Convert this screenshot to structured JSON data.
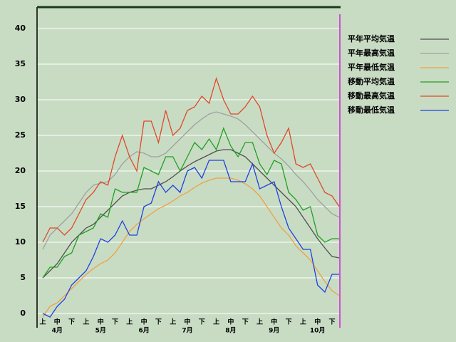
{
  "chart_data": {
    "type": "line",
    "categories": [
      "上",
      null,
      "中",
      null,
      "下",
      null,
      "上",
      null,
      "中",
      null,
      "下",
      null,
      "上",
      null,
      "中",
      null,
      "下",
      null,
      "上",
      null,
      "中",
      null,
      "下",
      null,
      "上",
      null,
      "中",
      null,
      "下",
      null,
      "上",
      null,
      "中",
      null,
      "下",
      null,
      "上",
      null,
      "中",
      null,
      "下",
      null
    ],
    "month_labels": [
      "4月",
      "5月",
      "6月",
      "7月",
      "8月",
      "9月",
      "10月"
    ],
    "ylim": [
      -2,
      43
    ],
    "yticks": [
      0,
      5,
      10,
      15,
      20,
      25,
      30,
      35,
      40
    ],
    "grid": true,
    "series": [
      {
        "name": "平年平均気温",
        "color": "#505050",
        "values": [
          5,
          6,
          7,
          8.5,
          10,
          11,
          12,
          12.5,
          13.5,
          14.5,
          15.5,
          16.5,
          17,
          17.3,
          17.5,
          17.5,
          18,
          18.5,
          19.2,
          20,
          20.7,
          21.3,
          21.8,
          22.3,
          22.8,
          23,
          23,
          22.5,
          22,
          21,
          20,
          19,
          18,
          17,
          16,
          15,
          13.5,
          12,
          10.5,
          9.2,
          8,
          7.8
        ]
      },
      {
        "name": "平年最高気温",
        "color": "#a0a0a0",
        "values": [
          9,
          11,
          12,
          13,
          14,
          15.5,
          17,
          18,
          18.3,
          18.5,
          19.5,
          21,
          22,
          22.7,
          22.5,
          22,
          22,
          22.5,
          23.5,
          24.5,
          25.5,
          26.5,
          27.3,
          28,
          28.3,
          28,
          27.7,
          27.3,
          26.5,
          25.5,
          24.5,
          23.5,
          22.5,
          21.7,
          20.7,
          19.5,
          18.5,
          17.3,
          16,
          15,
          14,
          13.5
        ]
      },
      {
        "name": "平年最低気温",
        "color": "#f0a040",
        "values": [
          -0.5,
          1,
          1.5,
          2.5,
          3.5,
          4.5,
          5.5,
          6.3,
          7,
          7.5,
          8.5,
          10,
          11.5,
          12.5,
          13.3,
          14,
          14.7,
          15.2,
          15.8,
          16.5,
          17,
          17.7,
          18.3,
          18.7,
          19,
          19,
          19,
          18.7,
          18.2,
          17.5,
          16.5,
          15,
          13.5,
          12,
          11,
          9.5,
          8.5,
          7.5,
          6,
          4.5,
          3.2,
          2.5
        ]
      },
      {
        "name": "移動平均気温",
        "color": "#20a020",
        "values": [
          5,
          6.5,
          6.5,
          8,
          8.5,
          11,
          11.5,
          12,
          14,
          13.5,
          17.5,
          17,
          17,
          17,
          20.5,
          20,
          19.5,
          22,
          22,
          20,
          22,
          24,
          23,
          24.5,
          23,
          26,
          23.5,
          22,
          24,
          24,
          21,
          19.5,
          21.5,
          21,
          17,
          16,
          14.5,
          15,
          11,
          10,
          10.5,
          10.5
        ]
      },
      {
        "name": "移動最高気温",
        "color": "#e04828",
        "values": [
          10,
          12,
          12,
          11,
          12,
          14,
          16,
          17,
          18.5,
          18,
          22,
          25,
          22,
          20,
          27,
          27,
          24,
          28.5,
          25,
          26,
          28.5,
          29,
          30.5,
          29.5,
          33,
          30,
          28,
          28,
          29,
          30.5,
          29,
          25,
          22.5,
          24,
          26,
          21,
          20.5,
          21,
          19,
          17,
          16.5,
          15
        ]
      },
      {
        "name": "移動最低気温",
        "color": "#2040e0",
        "values": [
          0,
          -0.5,
          1,
          2,
          4,
          5,
          6,
          8,
          10.5,
          10,
          11,
          13,
          11,
          11,
          15,
          15.5,
          18.5,
          17,
          18,
          17,
          20,
          20.5,
          19,
          21.5,
          21.5,
          21.5,
          18.5,
          18.5,
          18.5,
          21,
          17.5,
          18,
          18.5,
          15,
          12,
          10.5,
          9,
          9,
          4,
          3,
          5.5,
          5.5
        ]
      }
    ]
  }
}
